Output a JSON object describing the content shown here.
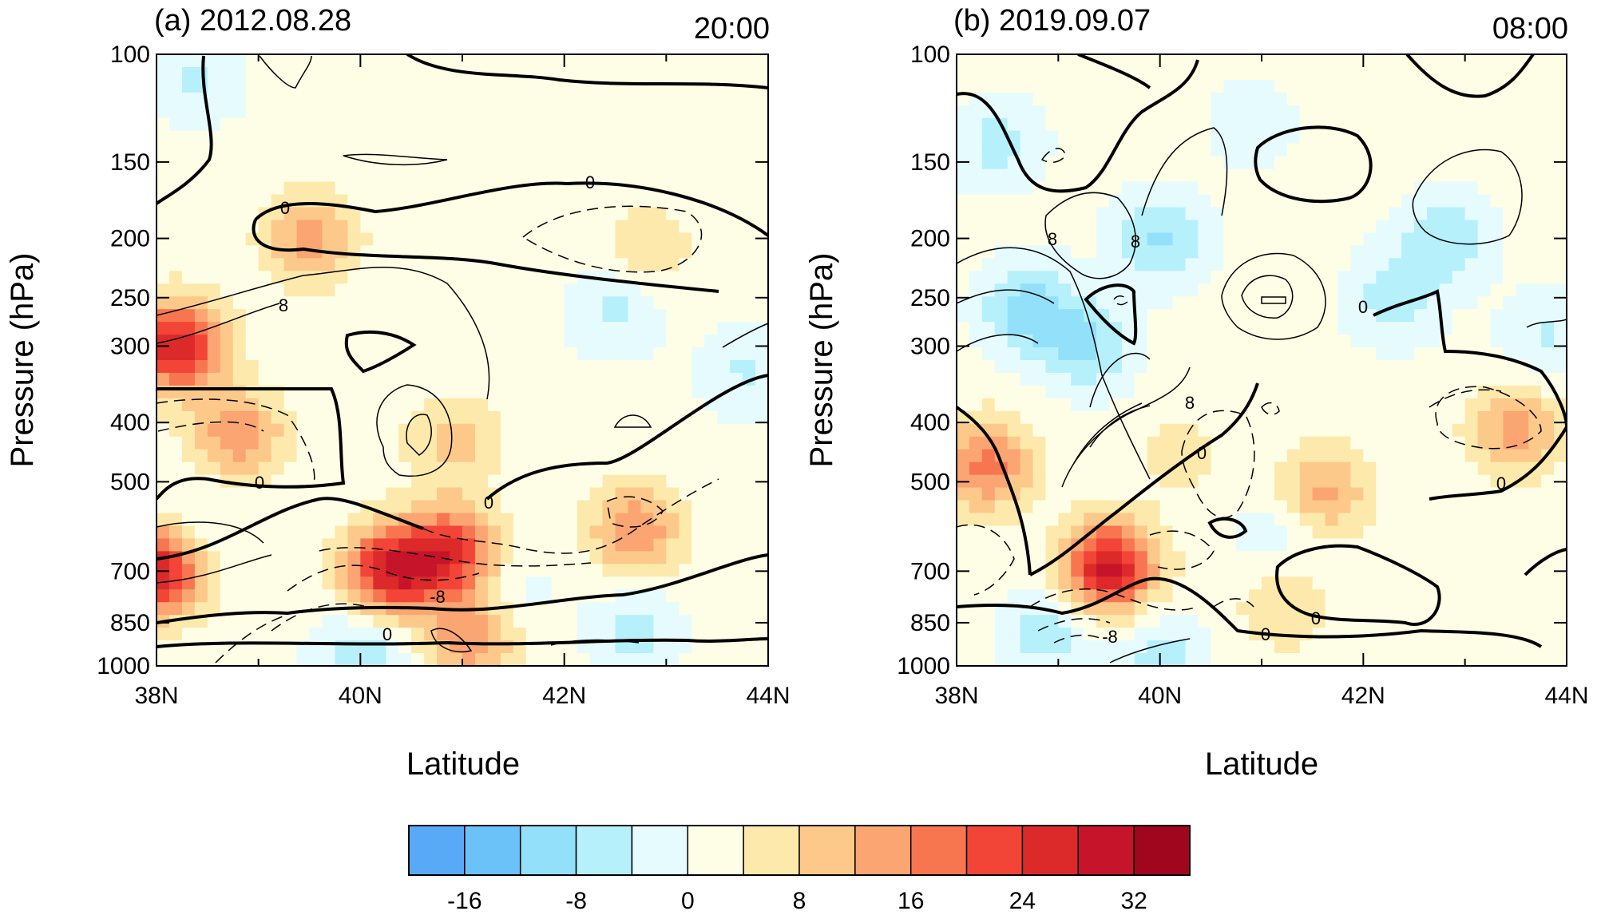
{
  "chart_data": [
    {
      "type": "heatmap",
      "title": "(a) 2012.08.28",
      "time": "20:00",
      "xlabel": "Latitude",
      "ylabel": "Pressure (hPa)",
      "xlim": [
        38,
        44
      ],
      "ylim": [
        1000,
        100
      ],
      "yscale": "log",
      "xticks": [
        "38N",
        "40N",
        "42N",
        "44N"
      ],
      "xtick_values": [
        38,
        40,
        42,
        44
      ],
      "yticks": [
        "100",
        "150",
        "200",
        "250",
        "300",
        "400",
        "500",
        "700",
        "850",
        "1000"
      ],
      "ytick_values": [
        100,
        150,
        200,
        250,
        300,
        400,
        500,
        700,
        850,
        1000
      ],
      "contour_labels": [
        "0",
        "0",
        "0",
        "0",
        "0",
        "8",
        "-8"
      ],
      "features": [
        {
          "lat": 38.2,
          "p": 300,
          "value": 26
        },
        {
          "lat": 38.0,
          "p": 700,
          "value": 26
        },
        {
          "lat": 40.3,
          "p": 700,
          "value": 26
        },
        {
          "lat": 40.9,
          "p": 650,
          "value": 22
        },
        {
          "lat": 42.7,
          "p": 600,
          "value": 14
        },
        {
          "lat": 38.8,
          "p": 420,
          "value": 14
        },
        {
          "lat": 39.5,
          "p": 200,
          "value": 12
        },
        {
          "lat": 41.1,
          "p": 900,
          "value": 14
        },
        {
          "lat": 40.9,
          "p": 430,
          "value": 8
        },
        {
          "lat": 42.8,
          "p": 210,
          "value": 6
        },
        {
          "lat": 38.4,
          "p": 110,
          "value": -6
        },
        {
          "lat": 42.5,
          "p": 260,
          "value": -7
        },
        {
          "lat": 43.8,
          "p": 330,
          "value": -6
        },
        {
          "lat": 40.0,
          "p": 960,
          "value": -9
        },
        {
          "lat": 42.7,
          "p": 880,
          "value": -7
        },
        {
          "lat": 41.5,
          "p": 760,
          "value": -4
        },
        {
          "lat": 38.5,
          "p": 560,
          "value": -3
        }
      ]
    },
    {
      "type": "heatmap",
      "title": "(b) 2019.09.07",
      "time": "08:00",
      "xlabel": "Latitude",
      "ylabel": "Pressure (hPa)",
      "xlim": [
        38,
        44
      ],
      "ylim": [
        1000,
        100
      ],
      "yscale": "log",
      "xticks": [
        "38N",
        "40N",
        "42N",
        "44N"
      ],
      "xtick_values": [
        38,
        40,
        42,
        44
      ],
      "yticks": [
        "100",
        "150",
        "200",
        "250",
        "300",
        "400",
        "500",
        "700",
        "850",
        "1000"
      ],
      "ytick_values": [
        100,
        150,
        200,
        250,
        300,
        400,
        500,
        700,
        850,
        1000
      ],
      "contour_labels": [
        "8",
        "8",
        "0",
        "8",
        "0",
        "0",
        "0",
        "0",
        "-8"
      ],
      "features": [
        {
          "lat": 39.5,
          "p": 690,
          "value": 28
        },
        {
          "lat": 38.3,
          "p": 470,
          "value": 16
        },
        {
          "lat": 41.6,
          "p": 520,
          "value": 12
        },
        {
          "lat": 43.5,
          "p": 410,
          "value": 12
        },
        {
          "lat": 41.2,
          "p": 800,
          "value": 6
        },
        {
          "lat": 38.7,
          "p": 260,
          "value": -12
        },
        {
          "lat": 39.3,
          "p": 300,
          "value": -10
        },
        {
          "lat": 40.0,
          "p": 200,
          "value": -10
        },
        {
          "lat": 38.4,
          "p": 140,
          "value": -7
        },
        {
          "lat": 42.3,
          "p": 250,
          "value": -8
        },
        {
          "lat": 42.8,
          "p": 200,
          "value": -9
        },
        {
          "lat": 43.8,
          "p": 290,
          "value": -6
        },
        {
          "lat": 40.9,
          "p": 130,
          "value": -4
        },
        {
          "lat": 38.9,
          "p": 880,
          "value": -8
        },
        {
          "lat": 40.0,
          "p": 960,
          "value": -7
        },
        {
          "lat": 41.2,
          "p": 600,
          "value": -5
        },
        {
          "lat": 40.2,
          "p": 450,
          "value": 4
        }
      ]
    }
  ],
  "colorbar": {
    "levels": [
      -20,
      -16,
      -12,
      -8,
      -4,
      0,
      4,
      8,
      12,
      16,
      20,
      24,
      28,
      32,
      36
    ],
    "tick_labels": [
      "-16",
      "-8",
      "0",
      "8",
      "16",
      "24",
      "32"
    ],
    "tick_values": [
      -16,
      -8,
      0,
      8,
      16,
      24,
      32
    ],
    "colors": [
      "#58aaf6",
      "#6bc2f8",
      "#93e0fb",
      "#b6f1fb",
      "#e6fbfd",
      "#fefde6",
      "#fde9ac",
      "#fcc98a",
      "#fba572",
      "#f7764f",
      "#f24537",
      "#dc2a2b",
      "#c6142b",
      "#a0061d"
    ]
  }
}
